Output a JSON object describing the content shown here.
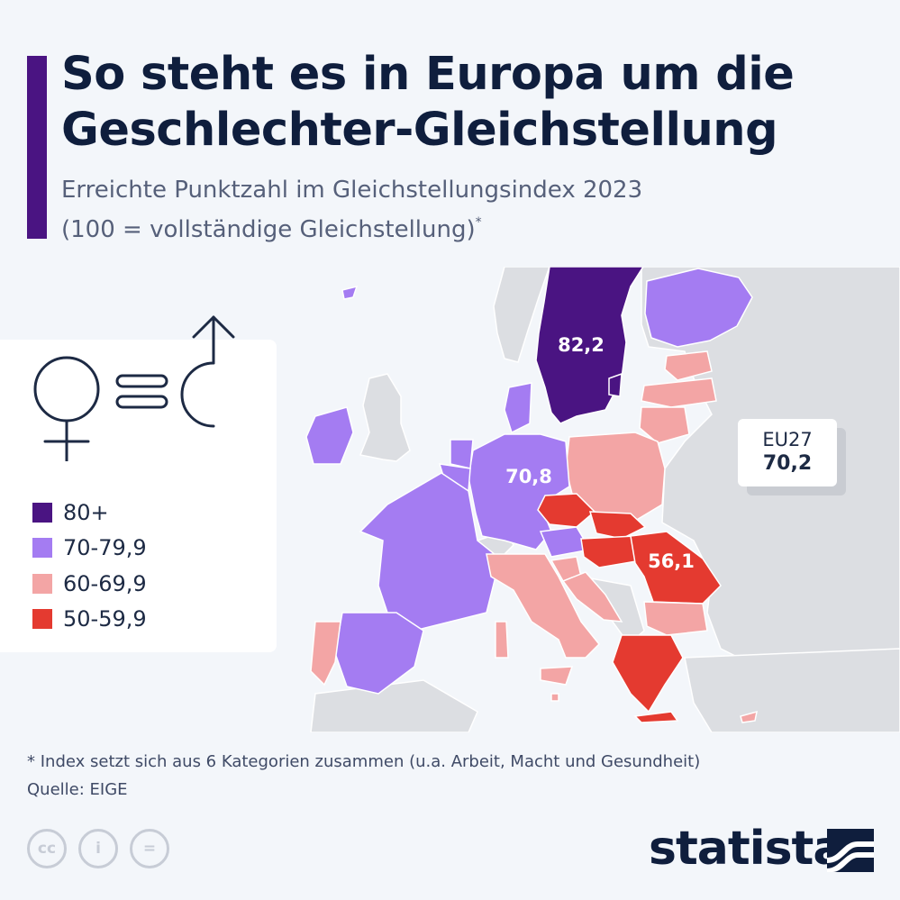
{
  "title": "So steht es in Europa um die Geschlechter-Gleichstellung",
  "subtitle_line1": "Erreichte Punktzahl im Gleichstellungsindex 2023",
  "subtitle_line2": "(100 = vollständige Gleichstellung)",
  "subtitle_marker": "*",
  "colors": {
    "accent": "#4a1482",
    "cat_80plus": "#4a1482",
    "cat_70": "#a47cf2",
    "cat_60": "#f3a5a5",
    "cat_50": "#e43a30",
    "non_eu": "#dcdee2",
    "sea": "#f3f6fa"
  },
  "legend": {
    "items": [
      {
        "label": "80+",
        "color": "#4a1482"
      },
      {
        "label": "70-79,9",
        "color": "#a47cf2"
      },
      {
        "label": "60-69,9",
        "color": "#f3a5a5"
      },
      {
        "label": "50-59,9",
        "color": "#e43a30"
      }
    ]
  },
  "map_labels": {
    "sweden": "82,2",
    "germany": "70,8",
    "romania": "56,1"
  },
  "eu": {
    "label": "EU27",
    "value": "70,2"
  },
  "footnote": "* Index setzt sich aus 6 Kategorien zusammen (u.a. Arbeit, Macht und Gesundheit)",
  "source": "Quelle: EIGE",
  "license_icons": [
    "cc",
    "i",
    "="
  ],
  "brand": "statista",
  "icons": [
    "female-symbol-icon",
    "equals-icon",
    "male-symbol-icon",
    "creative-commons-icon",
    "attribution-icon",
    "no-derivatives-icon",
    "statista-logo-icon"
  ]
}
